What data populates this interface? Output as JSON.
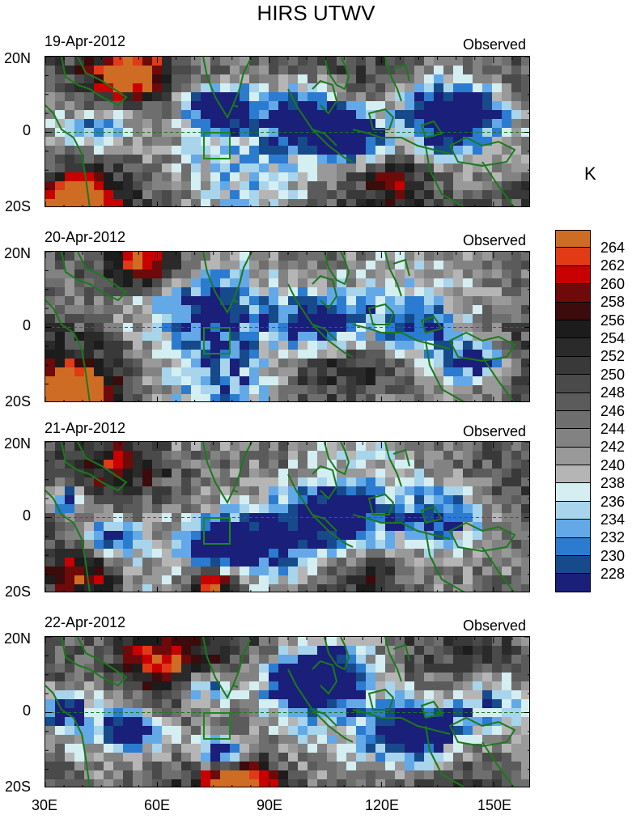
{
  "title": "HIRS UTWV",
  "unit": "K",
  "panels": [
    {
      "date": "19-Apr-2012",
      "tag": "Observed"
    },
    {
      "date": "20-Apr-2012",
      "tag": "Observed"
    },
    {
      "date": "21-Apr-2012",
      "tag": "Observed"
    },
    {
      "date": "22-Apr-2012",
      "tag": "Observed"
    }
  ],
  "y_ticks": [
    "20N",
    "0",
    "20S"
  ],
  "x_ticks": [
    "30E",
    "60E",
    "90E",
    "120E",
    "150E"
  ],
  "colorbar": {
    "labels": [
      "264",
      "262",
      "260",
      "258",
      "256",
      "254",
      "252",
      "250",
      "248",
      "246",
      "244",
      "242",
      "240",
      "238",
      "236",
      "234",
      "232",
      "230",
      "228"
    ],
    "colors": [
      "#cf6c24",
      "#e03a17",
      "#c80000",
      "#6e0a0a",
      "#3c0b0b",
      "#1c1c1c",
      "#2a2a2a",
      "#393939",
      "#4a4a4a",
      "#5b5b5b",
      "#6e6e6e",
      "#828282",
      "#999999",
      "#b5b5b5",
      "#d4eef2",
      "#a8d4ec",
      "#63a9e8",
      "#2b7bd0",
      "#174a8a",
      "#1a1f7a"
    ]
  },
  "colors": {
    "coastline": "#1a7a1a",
    "box": "#1a8a1a"
  }
}
